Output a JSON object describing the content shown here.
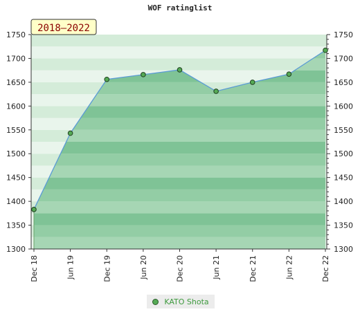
{
  "chart_data": {
    "type": "area",
    "title": "WOF ratinglist",
    "period_label": "2018–2022",
    "x": [
      "Dec 18",
      "Jun 19",
      "Dec 19",
      "Jun 20",
      "Dec 20",
      "Jun 21",
      "Dec 21",
      "Jun 22",
      "Dec 22"
    ],
    "series": [
      {
        "name": "KATO Shota",
        "values": [
          1383,
          1543,
          1656,
          1666,
          1676,
          1631,
          1650,
          1667,
          1717
        ]
      }
    ],
    "ylim": [
      1300,
      1750
    ],
    "yticks": [
      1300,
      1350,
      1400,
      1450,
      1500,
      1550,
      1600,
      1650,
      1700,
      1750
    ],
    "grid": true,
    "legend_position": "bottom-center",
    "colors": {
      "line": "#5b9bd5",
      "marker": "#55aa55",
      "fill": "#7cc493"
    }
  }
}
